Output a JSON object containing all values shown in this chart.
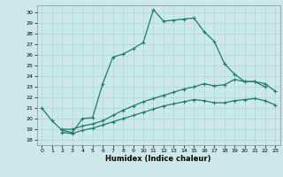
{
  "xlabel": "Humidex (Indice chaleur)",
  "xlim": [
    -0.5,
    23.5
  ],
  "ylim": [
    17.5,
    30.7
  ],
  "yticks": [
    18,
    19,
    20,
    21,
    22,
    23,
    24,
    25,
    26,
    27,
    28,
    29,
    30
  ],
  "xticks": [
    0,
    1,
    2,
    3,
    4,
    5,
    6,
    7,
    8,
    9,
    10,
    11,
    12,
    13,
    14,
    15,
    16,
    17,
    18,
    19,
    20,
    21,
    22,
    23
  ],
  "bg_color": "#cce9e7",
  "line_color": "#1e7b6e",
  "grid_color": "#b0d9d6",
  "line1_x": [
    0,
    1,
    2,
    3,
    4,
    5,
    6,
    7,
    8,
    9,
    10,
    11,
    12,
    13,
    14,
    15,
    16,
    17,
    18,
    19,
    20,
    21,
    22
  ],
  "line1_y": [
    21.0,
    19.8,
    18.9,
    18.7,
    20.0,
    20.1,
    23.3,
    25.8,
    26.1,
    26.6,
    27.2,
    30.3,
    29.2,
    29.3,
    29.4,
    29.5,
    28.2,
    27.3,
    25.2,
    24.2,
    23.5,
    23.5,
    23.0
  ],
  "line2_x": [
    2,
    3,
    4,
    5,
    6,
    7,
    8,
    9,
    10,
    11,
    12,
    13,
    14,
    15,
    16,
    17,
    18,
    19,
    20,
    21,
    22,
    23
  ],
  "line2_y": [
    19.0,
    19.0,
    19.3,
    19.5,
    19.8,
    20.3,
    20.8,
    21.2,
    21.6,
    21.9,
    22.2,
    22.5,
    22.8,
    23.0,
    23.3,
    23.1,
    23.2,
    23.7,
    23.5,
    23.5,
    23.3,
    22.6
  ],
  "line3_x": [
    2,
    3,
    4,
    5,
    6,
    7,
    8,
    9,
    10,
    11,
    12,
    13,
    14,
    15,
    16,
    17,
    18,
    19,
    20,
    21,
    22,
    23
  ],
  "line3_y": [
    18.7,
    18.6,
    18.9,
    19.1,
    19.4,
    19.7,
    20.0,
    20.3,
    20.6,
    20.9,
    21.2,
    21.4,
    21.6,
    21.8,
    21.7,
    21.5,
    21.5,
    21.7,
    21.8,
    21.9,
    21.7,
    21.3
  ]
}
